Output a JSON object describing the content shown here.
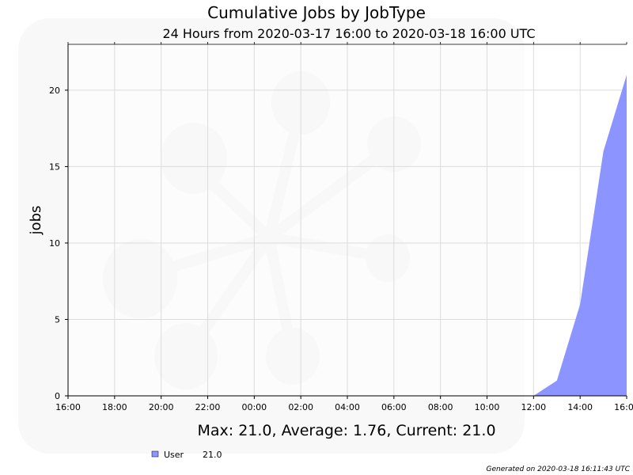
{
  "chart_data": {
    "type": "area",
    "title": "Cumulative Jobs by JobType",
    "subtitle": "24 Hours from 2020-03-17 16:00 to 2020-03-18 16:00 UTC",
    "xlabel": "",
    "ylabel": "jobs",
    "x_tick_labels": [
      "16:00",
      "18:00",
      "20:00",
      "22:00",
      "00:00",
      "02:00",
      "04:00",
      "06:00",
      "08:00",
      "10:00",
      "12:00",
      "14:00",
      "16:00"
    ],
    "y_ticks": [
      "0",
      "5",
      "10",
      "15",
      "20"
    ],
    "xlim": [
      "2020-03-17 16:00",
      "2020-03-18 16:00"
    ],
    "ylim": [
      0,
      23
    ],
    "grid": true,
    "legend_position": "bottom-left",
    "x": [
      "2020-03-18 12:00",
      "2020-03-18 13:00",
      "2020-03-18 14:00",
      "2020-03-18 15:00",
      "2020-03-18 16:00"
    ],
    "series": [
      {
        "name": "User",
        "color": "#8c95ff",
        "values": [
          0,
          1,
          6,
          16,
          21
        ],
        "legend_value": "21.0"
      }
    ],
    "summary": "Max: 21.0, Average: 1.76, Current: 21.0"
  },
  "footer": "Generated on 2020-03-18 16:11:43 UTC"
}
